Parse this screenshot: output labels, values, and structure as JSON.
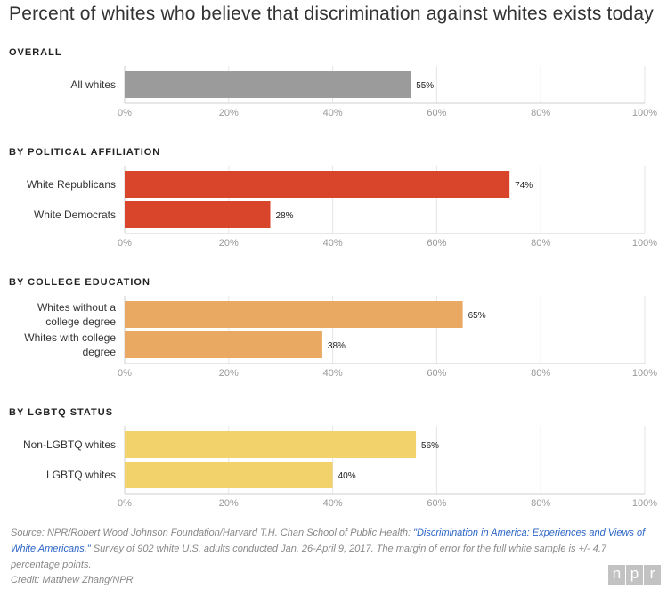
{
  "title": "Percent of whites who believe that discrimination against whites exists today",
  "chart_data": {
    "type": "bar",
    "orientation": "horizontal",
    "title": "Percent of whites who believe that discrimination against whites exists today",
    "xlim": [
      0,
      100
    ],
    "ticks": [
      0,
      20,
      40,
      60,
      80,
      100
    ],
    "tick_suffix": "%",
    "grid": true,
    "panels": [
      {
        "name": "OVERALL",
        "color": "#9b9b9b",
        "bars": [
          {
            "label": [
              "All whites"
            ],
            "value": 55
          }
        ]
      },
      {
        "name": "BY POLITICAL AFFILIATION",
        "color": "#d9452b",
        "bars": [
          {
            "label": [
              "White Republicans"
            ],
            "value": 74
          },
          {
            "label": [
              "White Democrats"
            ],
            "value": 28
          }
        ]
      },
      {
        "name": "BY COLLEGE EDUCATION",
        "color": "#e9a962",
        "bars": [
          {
            "label": [
              "Whites without a",
              "college degree"
            ],
            "value": 65
          },
          {
            "label": [
              "Whites with college",
              "degree"
            ],
            "value": 38
          }
        ]
      },
      {
        "name": "BY LGBTQ STATUS",
        "color": "#f2d36b",
        "bars": [
          {
            "label": [
              "Non-LGBTQ whites"
            ],
            "value": 56
          },
          {
            "label": [
              "LGBTQ whites"
            ],
            "value": 40
          }
        ]
      }
    ]
  },
  "footer": {
    "source_prefix": "Source: NPR/Robert Wood Johnson Foundation/Harvard T.H. Chan School of Public Health: ",
    "source_link": "\"Discrimination in America: Experiences and Views of White Americans.\"",
    "source_suffix": " Survey of 902 white U.S. adults conducted Jan. 26-April 9, 2017. The margin of error for the full white sample is +/- 4.7 percentage points.",
    "credit": "Credit: Matthew Zhang/NPR"
  },
  "logo": {
    "letters": [
      "n",
      "p",
      "r"
    ]
  }
}
